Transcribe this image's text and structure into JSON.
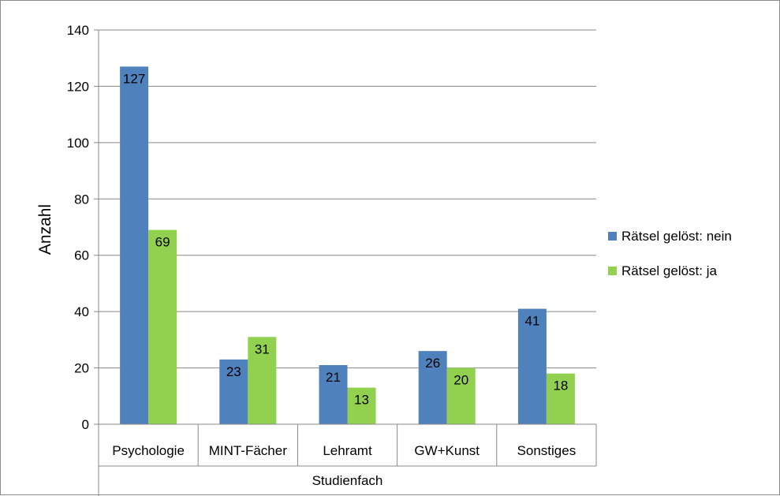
{
  "chart_data": {
    "type": "bar",
    "categories": [
      "Psychologie",
      "MINT-Fächer",
      "Lehramt",
      "GW+Kunst",
      "Sonstiges"
    ],
    "series": [
      {
        "name": "Rätsel gelöst: nein",
        "values": [
          127,
          23,
          21,
          26,
          41
        ],
        "color": "#4f81bd"
      },
      {
        "name": "Rätsel gelöst: ja",
        "values": [
          69,
          31,
          13,
          20,
          18
        ],
        "color": "#92d050"
      }
    ],
    "xlabel": "Studienfach",
    "ylabel": "Anzahl",
    "ylim": [
      0,
      140
    ],
    "yticks": [
      0,
      20,
      40,
      60,
      80,
      100,
      120,
      140
    ],
    "grid": true,
    "legend": "right",
    "data_labels": true
  }
}
